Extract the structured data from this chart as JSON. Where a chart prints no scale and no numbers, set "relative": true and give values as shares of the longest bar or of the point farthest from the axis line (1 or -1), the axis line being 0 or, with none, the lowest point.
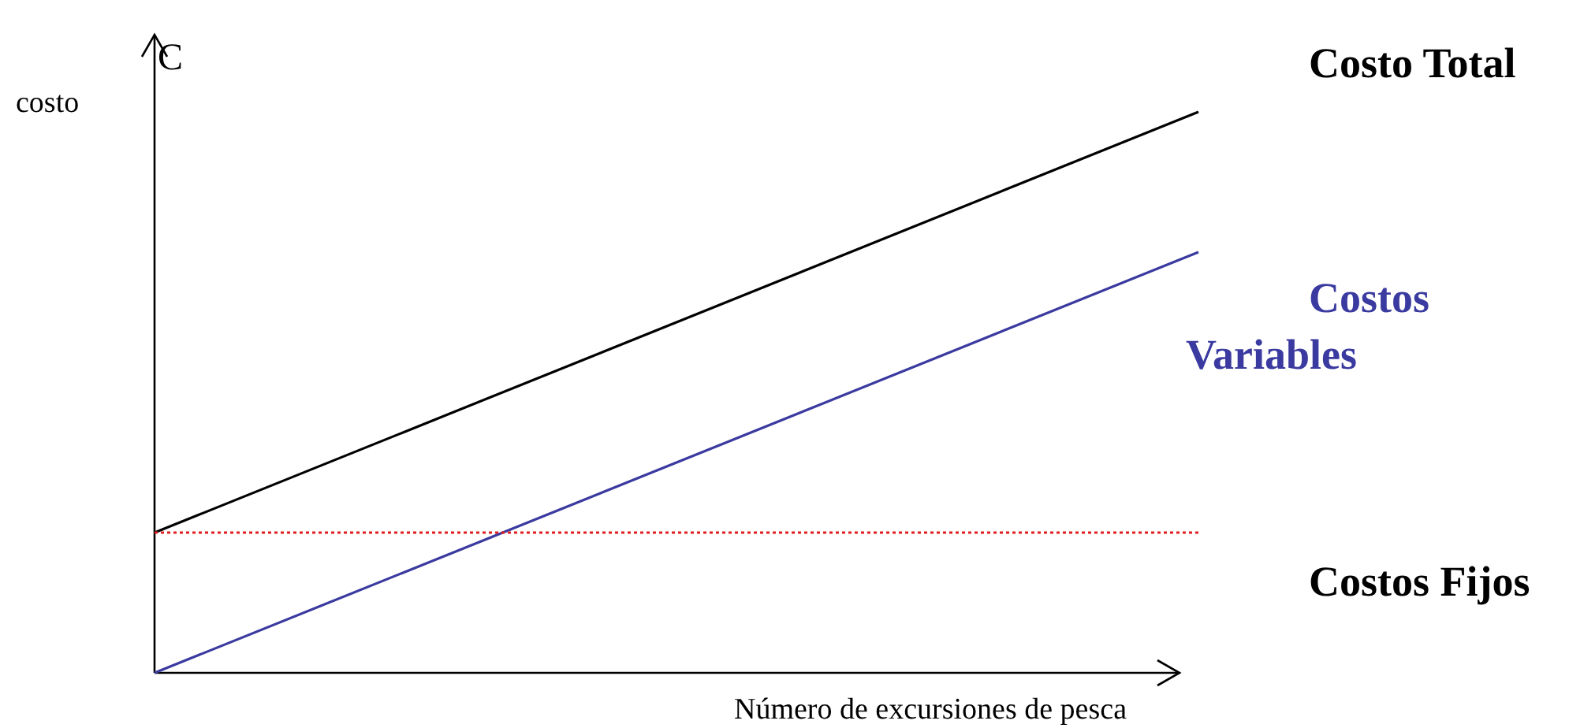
{
  "chart_data": {
    "type": "line",
    "relative": true,
    "xlabel": "Número de excursiones de pesca",
    "ylabel": "costo",
    "annotations": [
      "C"
    ],
    "categories": [
      null,
      null
    ],
    "series": [
      {
        "name": "Costo Total",
        "color": "#000000",
        "values": [
          0.25,
          1
        ]
      },
      {
        "name": "Costos Variables",
        "color": "#3a3aa0",
        "values": [
          0,
          0.75
        ]
      },
      {
        "name": "Costos Fijos",
        "color": "#e02020",
        "values": [
          0.25,
          0.25
        ],
        "line_style": "dotted"
      }
    ]
  }
}
